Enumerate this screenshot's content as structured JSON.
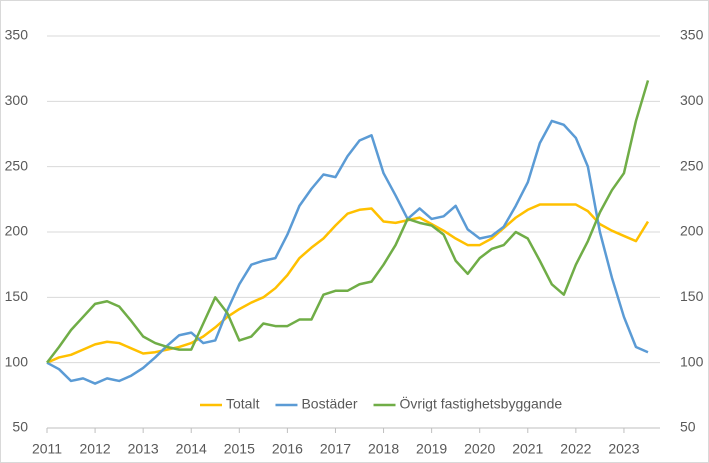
{
  "chart_data": {
    "type": "line",
    "x": [
      2011,
      2011.25,
      2011.5,
      2011.75,
      2012,
      2012.25,
      2012.5,
      2012.75,
      2013,
      2013.25,
      2013.5,
      2013.75,
      2014,
      2014.25,
      2014.5,
      2014.75,
      2015,
      2015.25,
      2015.5,
      2015.75,
      2016,
      2016.25,
      2016.5,
      2016.75,
      2017,
      2017.25,
      2017.5,
      2017.75,
      2018,
      2018.25,
      2018.5,
      2018.75,
      2019,
      2019.25,
      2019.5,
      2019.75,
      2020,
      2020.25,
      2020.5,
      2020.75,
      2021,
      2021.25,
      2021.5,
      2021.75,
      2022,
      2022.25,
      2022.5,
      2022.75,
      2023,
      2023.25,
      2023.5
    ],
    "series": [
      {
        "name": "Totalt",
        "color": "#FFC000",
        "values": [
          100,
          104,
          106,
          110,
          114,
          116,
          115,
          111,
          107,
          108,
          110,
          112,
          115,
          120,
          127,
          135,
          141,
          146,
          150,
          157,
          167,
          180,
          188,
          195,
          205,
          214,
          217,
          218,
          208,
          207,
          209,
          211,
          206,
          201,
          195,
          190,
          190,
          195,
          203,
          211,
          217,
          221,
          221,
          221,
          221,
          216,
          206,
          201,
          197,
          193,
          208
        ]
      },
      {
        "name": "Bostäder",
        "color": "#5B9BD5",
        "values": [
          100,
          95,
          86,
          88,
          84,
          88,
          86,
          90,
          96,
          104,
          113,
          121,
          123,
          115,
          117,
          140,
          160,
          175,
          178,
          180,
          198,
          220,
          233,
          244,
          242,
          258,
          270,
          274,
          245,
          228,
          210,
          218,
          210,
          212,
          220,
          202,
          195,
          197,
          204,
          220,
          238,
          268,
          285,
          282,
          272,
          250,
          200,
          165,
          135,
          112,
          108
        ]
      },
      {
        "name": "Övrigt fastighetsbyggande",
        "color": "#70AD47",
        "values": [
          100,
          112,
          125,
          135,
          145,
          147,
          143,
          132,
          120,
          115,
          112,
          110,
          110,
          130,
          150,
          138,
          117,
          120,
          130,
          128,
          128,
          133,
          133,
          152,
          155,
          155,
          160,
          162,
          175,
          190,
          210,
          207,
          205,
          198,
          178,
          168,
          180,
          187,
          190,
          200,
          195,
          178,
          160,
          152,
          175,
          193,
          215,
          232,
          245,
          285,
          316
        ]
      }
    ],
    "xlim": [
      2011,
      2023.75
    ],
    "xticks": [
      2011,
      2012,
      2013,
      2014,
      2015,
      2016,
      2017,
      2018,
      2019,
      2020,
      2021,
      2022,
      2023
    ],
    "ylim": [
      50,
      350
    ],
    "yticks": [
      50,
      100,
      150,
      200,
      250,
      300,
      350
    ],
    "y2lim": [
      50,
      350
    ],
    "y2ticks": [
      50,
      100,
      150,
      200,
      250,
      300,
      350
    ],
    "grid": true,
    "legend": "bottom"
  }
}
